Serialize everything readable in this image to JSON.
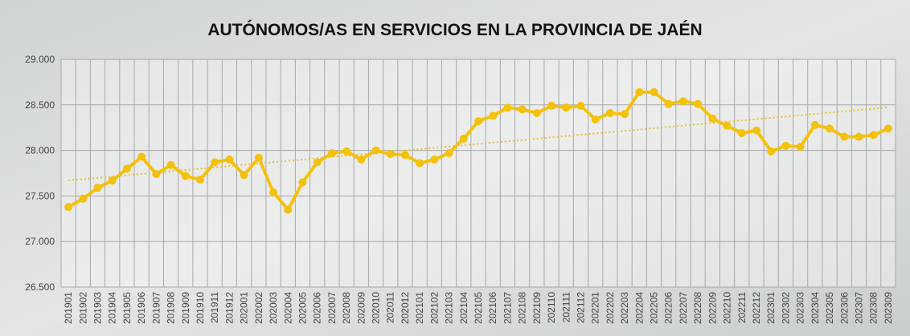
{
  "chart_data": {
    "type": "line",
    "title": "AUTÓNOMOS/AS EN SERVICIOS EN LA PROVINCIA DE JAÉN",
    "categories": [
      "201901",
      "201902",
      "201903",
      "201904",
      "201905",
      "201906",
      "201907",
      "201908",
      "201909",
      "201910",
      "201911",
      "201912",
      "202001",
      "202002",
      "202003",
      "202004",
      "202005",
      "202006",
      "202007",
      "202008",
      "202009",
      "202010",
      "202011",
      "202012",
      "202101",
      "202102",
      "202103",
      "202104",
      "202105",
      "202106",
      "202107",
      "202108",
      "202109",
      "202110",
      "202111",
      "202112",
      "202201",
      "202202",
      "202203",
      "202204",
      "202205",
      "202206",
      "202207",
      "202208",
      "202209",
      "202210",
      "202211",
      "202212",
      "202301",
      "202302",
      "202303",
      "202304",
      "202305",
      "202306",
      "202307",
      "202308",
      "202309"
    ],
    "series": [
      {
        "color": "#f4c20d",
        "values": [
          27380,
          27470,
          27590,
          27670,
          27800,
          27930,
          27740,
          27840,
          27720,
          27680,
          27870,
          27900,
          27730,
          27920,
          27540,
          27350,
          27650,
          27870,
          27970,
          27990,
          27900,
          28000,
          27960,
          27950,
          27860,
          27900,
          27970,
          28130,
          28320,
          28380,
          28470,
          28450,
          28410,
          28490,
          28470,
          28490,
          28340,
          28410,
          28400,
          28640,
          28640,
          28510,
          28540,
          28510,
          28350,
          28270,
          28190,
          28220,
          27990,
          28050,
          28040,
          28280,
          28240,
          28150,
          28150,
          28170,
          28240
        ]
      }
    ],
    "trendline": true,
    "ylim": [
      26500,
      29000
    ],
    "yticks": [
      {
        "value": 26500,
        "label": "26.500"
      },
      {
        "value": 27000,
        "label": "27.000"
      },
      {
        "value": 27500,
        "label": "27.500"
      },
      {
        "value": 28000,
        "label": "28.000"
      },
      {
        "value": 28500,
        "label": "28.500"
      },
      {
        "value": 29000,
        "label": "29.000"
      }
    ],
    "grid": true
  }
}
